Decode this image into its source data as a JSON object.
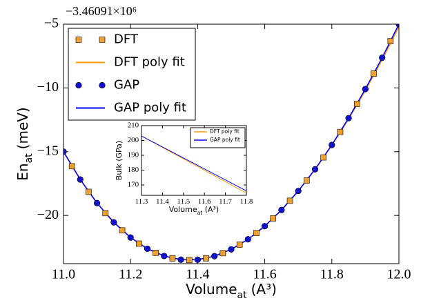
{
  "chart_data": [
    {
      "type": "line",
      "offset_label": "−3.46091×10⁶",
      "xlabel": [
        "Volume",
        "at",
        "(A³)"
      ],
      "ylabel": [
        "En",
        "at",
        "(meV)"
      ],
      "xlim": [
        11.0,
        12.0
      ],
      "xticks": [
        {
          "value": 11.0,
          "label": "11.0"
        },
        11.2,
        11.4,
        11.6,
        11.8,
        {
          "value": 12.0,
          "label": "12.0"
        }
      ],
      "ylim": [
        -23.78,
        -5
      ],
      "yticks": [
        {
          "value": -5,
          "label": "−5"
        },
        {
          "value": -10,
          "label": "−10"
        },
        {
          "value": -15,
          "label": "−15"
        },
        {
          "value": -20,
          "label": "−20"
        }
      ],
      "legend": "upper left",
      "series": [
        {
          "name": "DFT",
          "color": "#f0a030",
          "marker": "square",
          "x": [
            11.025,
            11.075,
            11.125,
            11.175,
            11.225,
            11.275,
            11.325,
            11.375,
            11.425,
            11.475,
            11.525,
            11.575,
            11.625,
            11.675,
            11.725,
            11.775,
            11.825,
            11.875,
            11.925,
            11.975
          ],
          "values": [
            -16.14,
            -18.15,
            -19.82,
            -21.17,
            -22.21,
            -22.93,
            -23.36,
            -23.5,
            -23.36,
            -22.96,
            -22.29,
            -21.38,
            -20.23,
            -18.85,
            -17.26,
            -15.45,
            -13.45,
            -11.25,
            -8.88,
            -6.33
          ]
        },
        {
          "name": "DFT poly fit",
          "color": "#ff9900",
          "marker": "none",
          "x": [
            11.0,
            11.05,
            11.1,
            11.15,
            11.2,
            11.25,
            11.3,
            11.35,
            11.4,
            11.45,
            11.5,
            11.55,
            11.6,
            11.65,
            11.7,
            11.75,
            11.8,
            11.85,
            11.9,
            11.95,
            12.0
          ],
          "values": [
            -15.0,
            -17.18,
            -19.03,
            -20.54,
            -21.73,
            -22.61,
            -23.18,
            -23.47,
            -23.47,
            -23.19,
            -22.66,
            -21.87,
            -20.84,
            -19.57,
            -18.08,
            -16.38,
            -14.5,
            -12.45,
            -10.2,
            -7.8,
            -5.2
          ]
        },
        {
          "name": "GAP",
          "color": "#1010d0",
          "marker": "circle",
          "x": [
            11.0,
            11.05,
            11.1,
            11.15,
            11.2,
            11.25,
            11.3,
            11.35,
            11.4,
            11.45,
            11.5,
            11.55,
            11.6,
            11.65,
            11.7,
            11.75,
            11.8,
            11.85,
            11.9,
            11.95,
            12.0
          ],
          "values": [
            -15.0,
            -17.18,
            -19.03,
            -20.54,
            -21.73,
            -22.61,
            -23.18,
            -23.47,
            -23.47,
            -23.19,
            -22.66,
            -21.87,
            -20.84,
            -19.57,
            -18.08,
            -16.38,
            -14.47,
            -12.37,
            -10.09,
            -7.63,
            -5.0
          ]
        },
        {
          "name": "GAP poly fit",
          "color": "#0000ff",
          "marker": "none",
          "x": [
            11.0,
            11.05,
            11.1,
            11.15,
            11.2,
            11.25,
            11.3,
            11.35,
            11.4,
            11.45,
            11.5,
            11.55,
            11.6,
            11.65,
            11.7,
            11.75,
            11.8,
            11.85,
            11.9,
            11.95,
            12.0
          ],
          "values": [
            -15.0,
            -17.18,
            -19.03,
            -20.54,
            -21.73,
            -22.61,
            -23.18,
            -23.47,
            -23.47,
            -23.19,
            -22.66,
            -21.87,
            -20.84,
            -19.57,
            -18.08,
            -16.38,
            -14.47,
            -12.37,
            -10.09,
            -7.63,
            -5.0
          ]
        }
      ]
    },
    {
      "type": "line",
      "xlabel": [
        "Volume",
        "at",
        "(A³)"
      ],
      "ylabel": [
        "Bulk (GPa)"
      ],
      "xlim": [
        11.3,
        11.8
      ],
      "xticks": [
        11.3,
        11.4,
        11.5,
        11.6,
        11.7,
        11.8
      ],
      "ylim": [
        163,
        210
      ],
      "yticks": [
        170,
        180,
        190,
        200,
        210
      ],
      "legend": "upper right",
      "series": [
        {
          "name": "DFT poly fit",
          "color": "#ff9900",
          "marker": "none",
          "x": [
            11.3,
            11.8
          ],
          "values": [
            203,
            164.5
          ]
        },
        {
          "name": "GAP poly fit",
          "color": "#0000ff",
          "marker": "none",
          "x": [
            11.3,
            11.8
          ],
          "values": [
            203,
            166
          ]
        }
      ]
    }
  ]
}
